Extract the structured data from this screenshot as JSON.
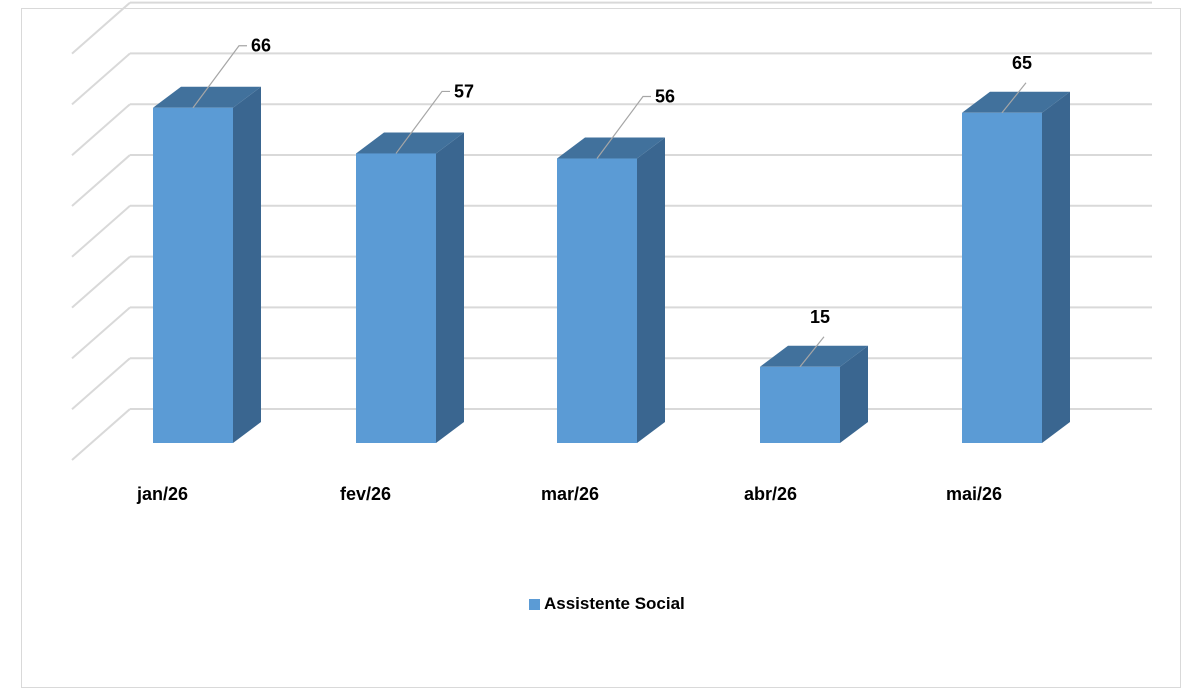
{
  "chart_data": {
    "type": "bar",
    "style": "3d-column",
    "categories": [
      "jan/26",
      "fev/26",
      "mar/26",
      "abr/26",
      "mai/26"
    ],
    "series": [
      {
        "name": "Assistente Social",
        "values": [
          66,
          57,
          56,
          15,
          65
        ]
      }
    ],
    "title": "",
    "xlabel": "",
    "ylabel": "",
    "ylim": [
      0,
      80
    ],
    "grid": true,
    "legend": "bottom",
    "colors": {
      "front": "#5b9bd5",
      "top": "#41719c",
      "side": "#3a6690",
      "grid": "#d9d9d9",
      "leader": "#a6a6a6"
    }
  },
  "legend": {
    "label": "Assistente Social"
  }
}
